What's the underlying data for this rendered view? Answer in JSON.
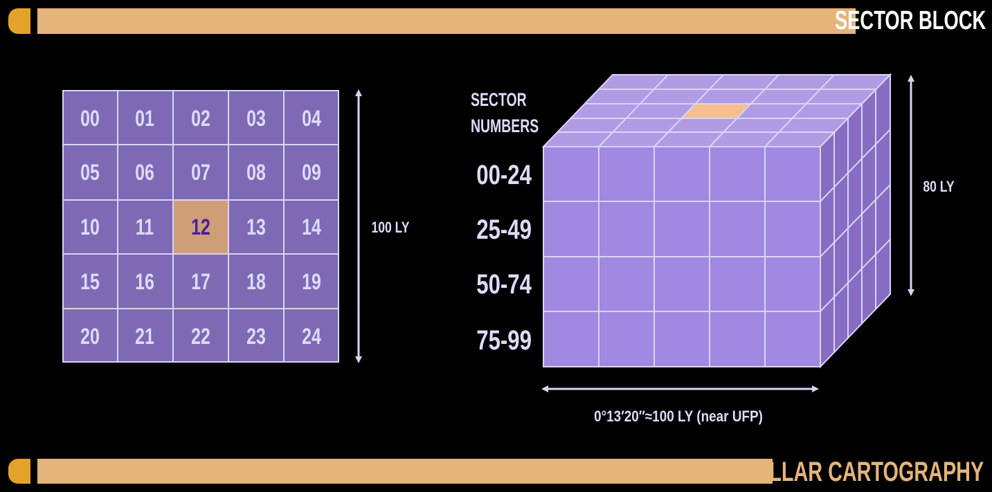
{
  "header": {
    "title": "SECTOR BLOCK"
  },
  "footer": {
    "title": "STELLAR CARTOGRAPHY"
  },
  "grid": {
    "cells": [
      "00",
      "01",
      "02",
      "03",
      "04",
      "05",
      "06",
      "07",
      "08",
      "09",
      "10",
      "11",
      "12",
      "13",
      "14",
      "15",
      "16",
      "17",
      "18",
      "19",
      "20",
      "21",
      "22",
      "23",
      "24"
    ],
    "highlighted": "12",
    "side_label": "100 LY"
  },
  "cube": {
    "legend_title_1": "SECTOR",
    "legend_title_2": "NUMBERS",
    "ranges": [
      "00-24",
      "25-49",
      "50-74",
      "75-99"
    ],
    "height_label": "80 LY",
    "width_label": "0°13′20″≈100 LY (near UFP)"
  },
  "colors": {
    "bar": "#e4b479",
    "cap": "#e3a32a",
    "grid_cell": "#7e69b5",
    "grid_highlight": "#cf9e78",
    "grid_line": "#d8d6f4",
    "grid_text": "#dcdcfa",
    "highlight_text": "#4a1f9c",
    "cube_front": "#a188e0",
    "cube_top": "#b09be4",
    "cube_side": "#876cc3",
    "cube_top_highlight": "#f7be8f",
    "arrow": "#d5d4f2"
  }
}
